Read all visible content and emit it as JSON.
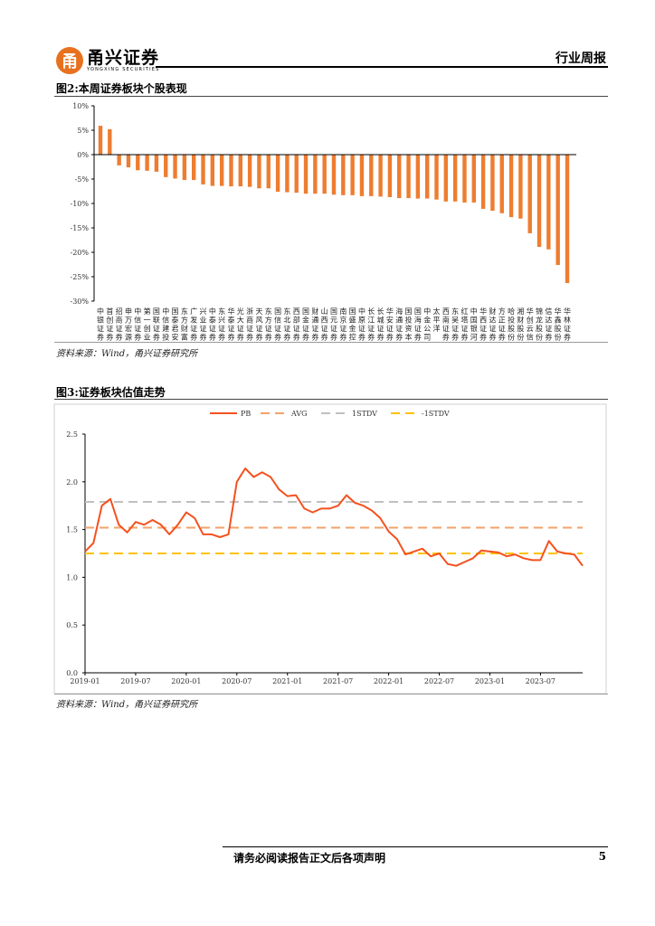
{
  "header": {
    "logo_cn": "甬兴证券",
    "logo_en": "YONGXING SECURITIES",
    "logo_glyph": "甬",
    "report_type": "行业周报"
  },
  "figure2": {
    "title": "图2:本周证券板块个股表现",
    "source": "资料来源：Wind，甬兴证券研究所"
  },
  "figure3": {
    "title": "图3:证券板块估值走势",
    "source": "资料来源：Wind，甬兴证券研究所"
  },
  "footer": {
    "disclaimer": "请务必阅读报告正文后各项声明",
    "page": "5"
  },
  "colors": {
    "bar": "#ed7d31",
    "pb": "#f4511e",
    "avg": "#f4a26a",
    "stdv": "#c0c0c0",
    "neg_stdv": "#ffc000"
  },
  "chart_data": [
    {
      "type": "bar",
      "title": "图2:本周证券板块个股表现",
      "categories": [
        "中银证券",
        "首创证券",
        "招商证券",
        "申万宏源",
        "中信证券",
        "第一创业",
        "国联证券",
        "中信建投",
        "国泰君安",
        "东方财富",
        "广发证券",
        "兴业证券",
        "中泰证券",
        "东兴证券",
        "华泰证券",
        "光大证券",
        "浙商证券",
        "天风证券",
        "东方证券",
        "国信证券",
        "东北证券",
        "西部证券",
        "国金证券",
        "财通证券",
        "山西证券",
        "国元证券",
        "南京证券",
        "国盛金控",
        "中原证券",
        "长江证券",
        "长城证券",
        "华安证券",
        "海通证券",
        "国投资本",
        "国海证券",
        "中金公司",
        "太平洋",
        "西南证券",
        "东吴证券",
        "红塔证券",
        "中国银河",
        "华西证券",
        "财达证券",
        "方正证券",
        "哈投股份",
        "湘财股份",
        "华创云信",
        "锦龙股份",
        "信达证券",
        "华鑫股份",
        "华林证券"
      ],
      "values": [
        5.9,
        5.2,
        -2.2,
        -2.6,
        -3.2,
        -3.3,
        -3.5,
        -4.6,
        -4.9,
        -5.2,
        -5.2,
        -6.1,
        -6.4,
        -6.4,
        -6.5,
        -6.5,
        -6.6,
        -6.9,
        -6.9,
        -7.6,
        -7.7,
        -7.8,
        -8.0,
        -8.0,
        -8.0,
        -8.2,
        -8.3,
        -8.3,
        -8.5,
        -8.5,
        -8.6,
        -8.7,
        -8.9,
        -8.9,
        -9.0,
        -9.0,
        -9.2,
        -9.6,
        -9.6,
        -9.8,
        -9.8,
        -11.1,
        -11.5,
        -12.0,
        -12.8,
        -13.1,
        -16.1,
        -18.9,
        -19.4,
        -22.6,
        -26.3
      ],
      "ylim": [
        -30,
        10
      ],
      "yticks": [
        "10%",
        "5%",
        "0%",
        "-5%",
        "-10%",
        "-15%",
        "-20%",
        "-25%",
        "-30%"
      ],
      "ytick_values": [
        10,
        5,
        0,
        -5,
        -10,
        -15,
        -20,
        -25,
        -30
      ],
      "unit": "%"
    },
    {
      "type": "line",
      "title": "图3:证券板块估值走势",
      "legend": [
        "PB",
        "AVG",
        "1STDV",
        "-1STDV"
      ],
      "legend_position": "top-center",
      "x": [
        "2019-01",
        "2019-02",
        "2019-03",
        "2019-04",
        "2019-05",
        "2019-06",
        "2019-07",
        "2019-08",
        "2019-09",
        "2019-10",
        "2019-11",
        "2019-12",
        "2020-01",
        "2020-02",
        "2020-03",
        "2020-04",
        "2020-05",
        "2020-06",
        "2020-07",
        "2020-08",
        "2020-09",
        "2020-10",
        "2020-11",
        "2020-12",
        "2021-01",
        "2021-02",
        "2021-03",
        "2021-04",
        "2021-05",
        "2021-06",
        "2021-07",
        "2021-08",
        "2021-09",
        "2021-10",
        "2021-11",
        "2021-12",
        "2022-01",
        "2022-02",
        "2022-03",
        "2022-04",
        "2022-05",
        "2022-06",
        "2022-07",
        "2022-08",
        "2022-09",
        "2022-10",
        "2022-11",
        "2022-12",
        "2023-01",
        "2023-02",
        "2023-03",
        "2023-04",
        "2023-05",
        "2023-06",
        "2023-07",
        "2023-08",
        "2023-09",
        "2023-10",
        "2023-11",
        "2023-12"
      ],
      "series": [
        {
          "name": "PB",
          "values": [
            1.27,
            1.36,
            1.75,
            1.82,
            1.55,
            1.47,
            1.58,
            1.55,
            1.6,
            1.55,
            1.45,
            1.55,
            1.68,
            1.62,
            1.45,
            1.45,
            1.42,
            1.45,
            2.0,
            2.14,
            2.05,
            2.1,
            2.05,
            1.92,
            1.85,
            1.86,
            1.72,
            1.68,
            1.72,
            1.72,
            1.75,
            1.86,
            1.78,
            1.75,
            1.7,
            1.62,
            1.48,
            1.4,
            1.24,
            1.27,
            1.3,
            1.22,
            1.25,
            1.14,
            1.12,
            1.16,
            1.2,
            1.28,
            1.27,
            1.26,
            1.22,
            1.24,
            1.2,
            1.18,
            1.18,
            1.38,
            1.27,
            1.25,
            1.24,
            1.12
          ]
        },
        {
          "name": "AVG",
          "value": 1.52
        },
        {
          "name": "1STDV",
          "value": 1.79
        },
        {
          "name": "-1STDV",
          "value": 1.25
        }
      ],
      "ylim": [
        0,
        2.5
      ],
      "yticks": [
        "0.0",
        "0.5",
        "1.0",
        "1.5",
        "2.0",
        "2.5"
      ],
      "ytick_values": [
        0,
        0.5,
        1.0,
        1.5,
        2.0,
        2.5
      ],
      "xticks": [
        "2019-01",
        "2019-07",
        "2020-01",
        "2020-07",
        "2021-01",
        "2021-07",
        "2022-01",
        "2022-07",
        "2023-01",
        "2023-07"
      ],
      "grid": false
    }
  ]
}
